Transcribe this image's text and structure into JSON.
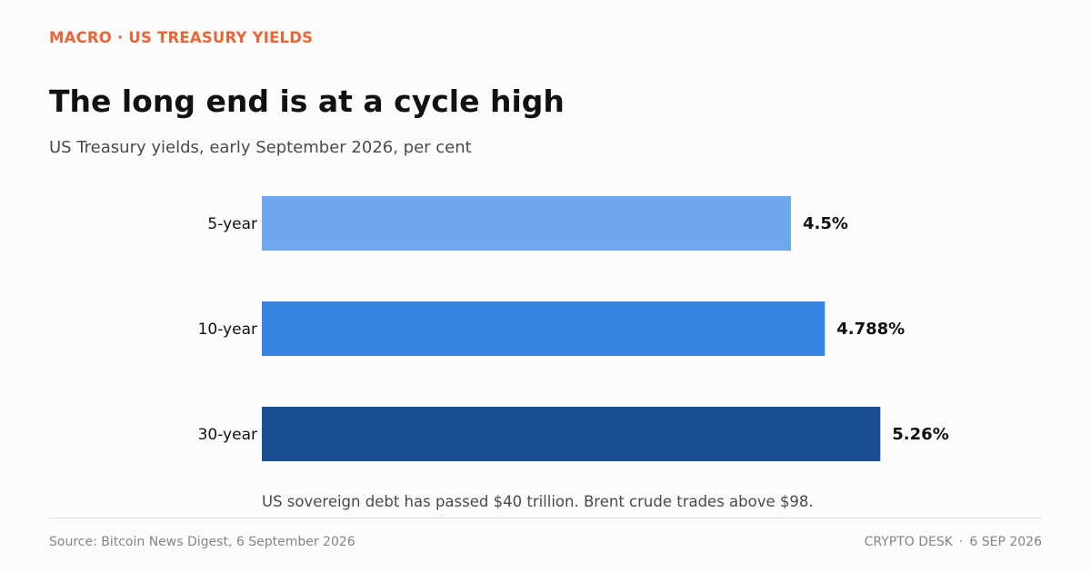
{
  "header": {
    "kicker": "MACRO · US TREASURY YIELDS",
    "kicker_color": "#e8663a"
  },
  "chart_data": {
    "type": "bar",
    "orientation": "horizontal",
    "title": "The long end is at a cycle high",
    "subtitle": "US Treasury yields, early September 2026, per cent",
    "categories": [
      "5-year",
      "10-year",
      "30-year"
    ],
    "values": [
      4.5,
      4.788,
      5.26
    ],
    "value_labels": [
      "4.5%",
      "4.788%",
      "5.26%"
    ],
    "colors": [
      "#6ea8ec",
      "#3886e3",
      "#1a4f93"
    ],
    "xlim": [
      0,
      6
    ],
    "grid": false,
    "annotation": "US sovereign debt has passed $40 trillion. Brent crude trades above $98."
  },
  "footer": {
    "source": "Source: Bitcoin News Digest, 6 September 2026",
    "brand": "CRYPTO DESK",
    "separator": "·",
    "date": "6 SEP 2026"
  }
}
